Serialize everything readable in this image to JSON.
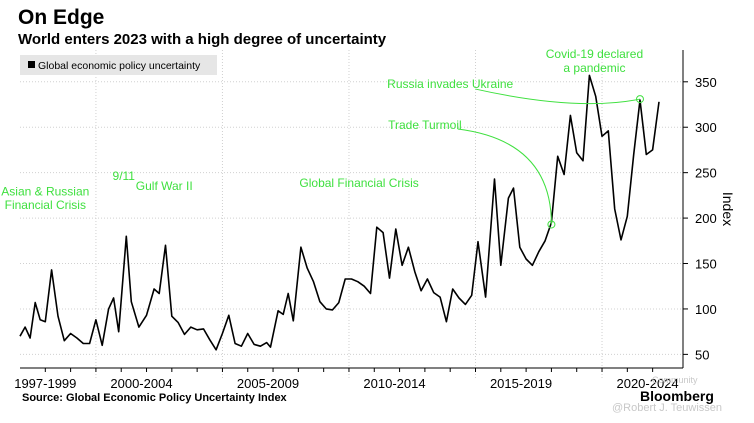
{
  "header": {
    "title": "On Edge",
    "subtitle": "World enters 2023 with a high degree of uncertainty"
  },
  "footer": {
    "source": "Source: Global Economic Policy Uncertainty Index",
    "brand": "Bloomberg",
    "watermark_community": "Community",
    "watermark_author": "@Robert J. Teuwissen"
  },
  "colors": {
    "line": "#000000",
    "annotation": "#3fe03f",
    "grid": "#d0d0d0",
    "legend_bg": "#e6e6e6"
  },
  "chart_data": {
    "type": "line",
    "title": "On Edge",
    "ylabel": "Index",
    "xlabel": "",
    "ylim": [
      35,
      385
    ],
    "y_ticks": [
      50,
      100,
      150,
      200,
      250,
      300,
      350
    ],
    "x_range": [
      1997,
      2023.2
    ],
    "x_tick_labels": [
      {
        "label": "1997-1999",
        "x": 1998
      },
      {
        "label": "2000-2004",
        "x": 2001.8
      },
      {
        "label": "2005-2009",
        "x": 2006.8
      },
      {
        "label": "2010-2014",
        "x": 2011.8
      },
      {
        "label": "2015-2019",
        "x": 2016.8
      },
      {
        "label": "2020-2024",
        "x": 2021.8
      }
    ],
    "legend": "top-left",
    "grid": true,
    "series": [
      {
        "name": "Global economic policy uncertainty",
        "points": [
          [
            1997.0,
            70
          ],
          [
            1997.2,
            80
          ],
          [
            1997.4,
            68
          ],
          [
            1997.6,
            107
          ],
          [
            1997.8,
            88
          ],
          [
            1998.0,
            86
          ],
          [
            1998.25,
            143
          ],
          [
            1998.5,
            92
          ],
          [
            1998.75,
            65
          ],
          [
            1999.0,
            73
          ],
          [
            1999.25,
            68
          ],
          [
            1999.5,
            62
          ],
          [
            1999.75,
            62
          ],
          [
            2000.0,
            88
          ],
          [
            2000.25,
            60
          ],
          [
            2000.5,
            100
          ],
          [
            2000.7,
            112
          ],
          [
            2000.9,
            75
          ],
          [
            2001.2,
            180
          ],
          [
            2001.4,
            108
          ],
          [
            2001.7,
            80
          ],
          [
            2002.0,
            93
          ],
          [
            2002.3,
            122
          ],
          [
            2002.5,
            117
          ],
          [
            2002.75,
            170
          ],
          [
            2003.0,
            92
          ],
          [
            2003.25,
            85
          ],
          [
            2003.5,
            72
          ],
          [
            2003.75,
            80
          ],
          [
            2004.0,
            77
          ],
          [
            2004.25,
            78
          ],
          [
            2004.5,
            66
          ],
          [
            2004.75,
            55
          ],
          [
            2005.0,
            73
          ],
          [
            2005.25,
            93
          ],
          [
            2005.5,
            62
          ],
          [
            2005.75,
            59
          ],
          [
            2006.0,
            73
          ],
          [
            2006.25,
            61
          ],
          [
            2006.5,
            59
          ],
          [
            2006.75,
            63
          ],
          [
            2006.9,
            58
          ],
          [
            2007.2,
            98
          ],
          [
            2007.4,
            94
          ],
          [
            2007.6,
            117
          ],
          [
            2007.8,
            87
          ],
          [
            2008.1,
            168
          ],
          [
            2008.35,
            145
          ],
          [
            2008.6,
            130
          ],
          [
            2008.85,
            108
          ],
          [
            2009.1,
            100
          ],
          [
            2009.35,
            99
          ],
          [
            2009.6,
            107
          ],
          [
            2009.85,
            133
          ],
          [
            2010.1,
            133
          ],
          [
            2010.35,
            130
          ],
          [
            2010.6,
            125
          ],
          [
            2010.85,
            117
          ],
          [
            2011.1,
            190
          ],
          [
            2011.35,
            184
          ],
          [
            2011.6,
            134
          ],
          [
            2011.85,
            188
          ],
          [
            2012.1,
            148
          ],
          [
            2012.35,
            168
          ],
          [
            2012.6,
            141
          ],
          [
            2012.85,
            120
          ],
          [
            2013.1,
            133
          ],
          [
            2013.35,
            118
          ],
          [
            2013.6,
            113
          ],
          [
            2013.85,
            86
          ],
          [
            2014.1,
            122
          ],
          [
            2014.35,
            112
          ],
          [
            2014.6,
            105
          ],
          [
            2014.85,
            115
          ],
          [
            2015.1,
            174
          ],
          [
            2015.4,
            113
          ],
          [
            2015.75,
            243
          ],
          [
            2016.0,
            148
          ],
          [
            2016.3,
            222
          ],
          [
            2016.5,
            233
          ],
          [
            2016.75,
            168
          ],
          [
            2017.0,
            155
          ],
          [
            2017.25,
            148
          ],
          [
            2017.5,
            163
          ],
          [
            2017.75,
            175
          ],
          [
            2018.0,
            195
          ],
          [
            2018.25,
            268
          ],
          [
            2018.5,
            248
          ],
          [
            2018.75,
            313
          ],
          [
            2019.0,
            272
          ],
          [
            2019.25,
            263
          ],
          [
            2019.5,
            357
          ],
          [
            2019.75,
            334
          ],
          [
            2020.0,
            290
          ],
          [
            2020.25,
            296
          ],
          [
            2020.5,
            210
          ],
          [
            2020.75,
            176
          ],
          [
            2021.0,
            202
          ],
          [
            2021.25,
            270
          ],
          [
            2021.5,
            330
          ],
          [
            2021.75,
            270
          ],
          [
            2022.0,
            275
          ],
          [
            2022.25,
            328
          ]
        ]
      }
    ],
    "annotations": [
      {
        "text": "Asian & Russian",
        "x": 1998.0,
        "y": 225
      },
      {
        "text": "Financial Crisis",
        "x": 1998.0,
        "y": 210
      },
      {
        "text": "9/11",
        "x": 2001.1,
        "y": 242
      },
      {
        "text": "Gulf War II",
        "x": 2002.7,
        "y": 231
      },
      {
        "text": "Global Financial Crisis",
        "x": 2010.4,
        "y": 234
      },
      {
        "text": "Trade Turmoil",
        "x": 2013.0,
        "y": 298
      },
      {
        "text": "Russia invades Ukraine",
        "x": 2014.0,
        "y": 343
      },
      {
        "text": "Covid-19 declared",
        "x": 2019.7,
        "y": 376
      },
      {
        "text": "a pandemic",
        "x": 2019.7,
        "y": 361
      }
    ],
    "connectors": [
      {
        "name": "trade-turmoil",
        "from": [
          2014.3,
          298
        ],
        "control": [
          2018.0,
          285
        ],
        "to": [
          2018.0,
          193
        ]
      },
      {
        "name": "russia-invades-ukraine",
        "from": [
          2015.0,
          342
        ],
        "control": [
          2019.0,
          317
        ],
        "to": [
          2021.5,
          331
        ]
      }
    ],
    "marked_points": [
      {
        "name": "trade-turmoil",
        "x": 2018.0,
        "y": 193
      },
      {
        "name": "russia-ukraine",
        "x": 2021.5,
        "y": 331
      }
    ]
  }
}
